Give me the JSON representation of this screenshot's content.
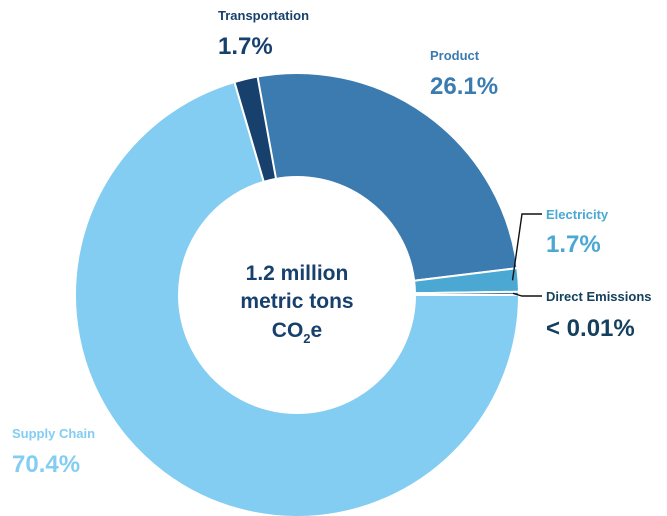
{
  "chart_data": {
    "type": "pie",
    "donut": true,
    "center_text": {
      "line1": "1.2 million",
      "line2": "metric tons",
      "line3_main": "CO",
      "line3_sub": "2",
      "line3_tail": "e"
    },
    "slices": [
      {
        "name": "Product",
        "label": "26.1%",
        "value": 26.1,
        "color": "#3b7bb0",
        "label_color": "#3b7bb0"
      },
      {
        "name": "Electricity",
        "label": "1.7%",
        "value": 1.7,
        "color": "#4aa8d3",
        "label_color": "#4aa8d3"
      },
      {
        "name": "Direct Emissions",
        "label": "< 0.01%",
        "value": 0.01,
        "color": "#1e5a86",
        "label_color": "#14405e"
      },
      {
        "name": "Supply Chain",
        "label": "70.4%",
        "value": 70.4,
        "color": "#82cdf1",
        "label_color": "#82cdf1"
      },
      {
        "name": "Transportation",
        "label": "1.7%",
        "value": 1.7,
        "color": "#17406d",
        "label_color": "#17406d"
      }
    ]
  }
}
